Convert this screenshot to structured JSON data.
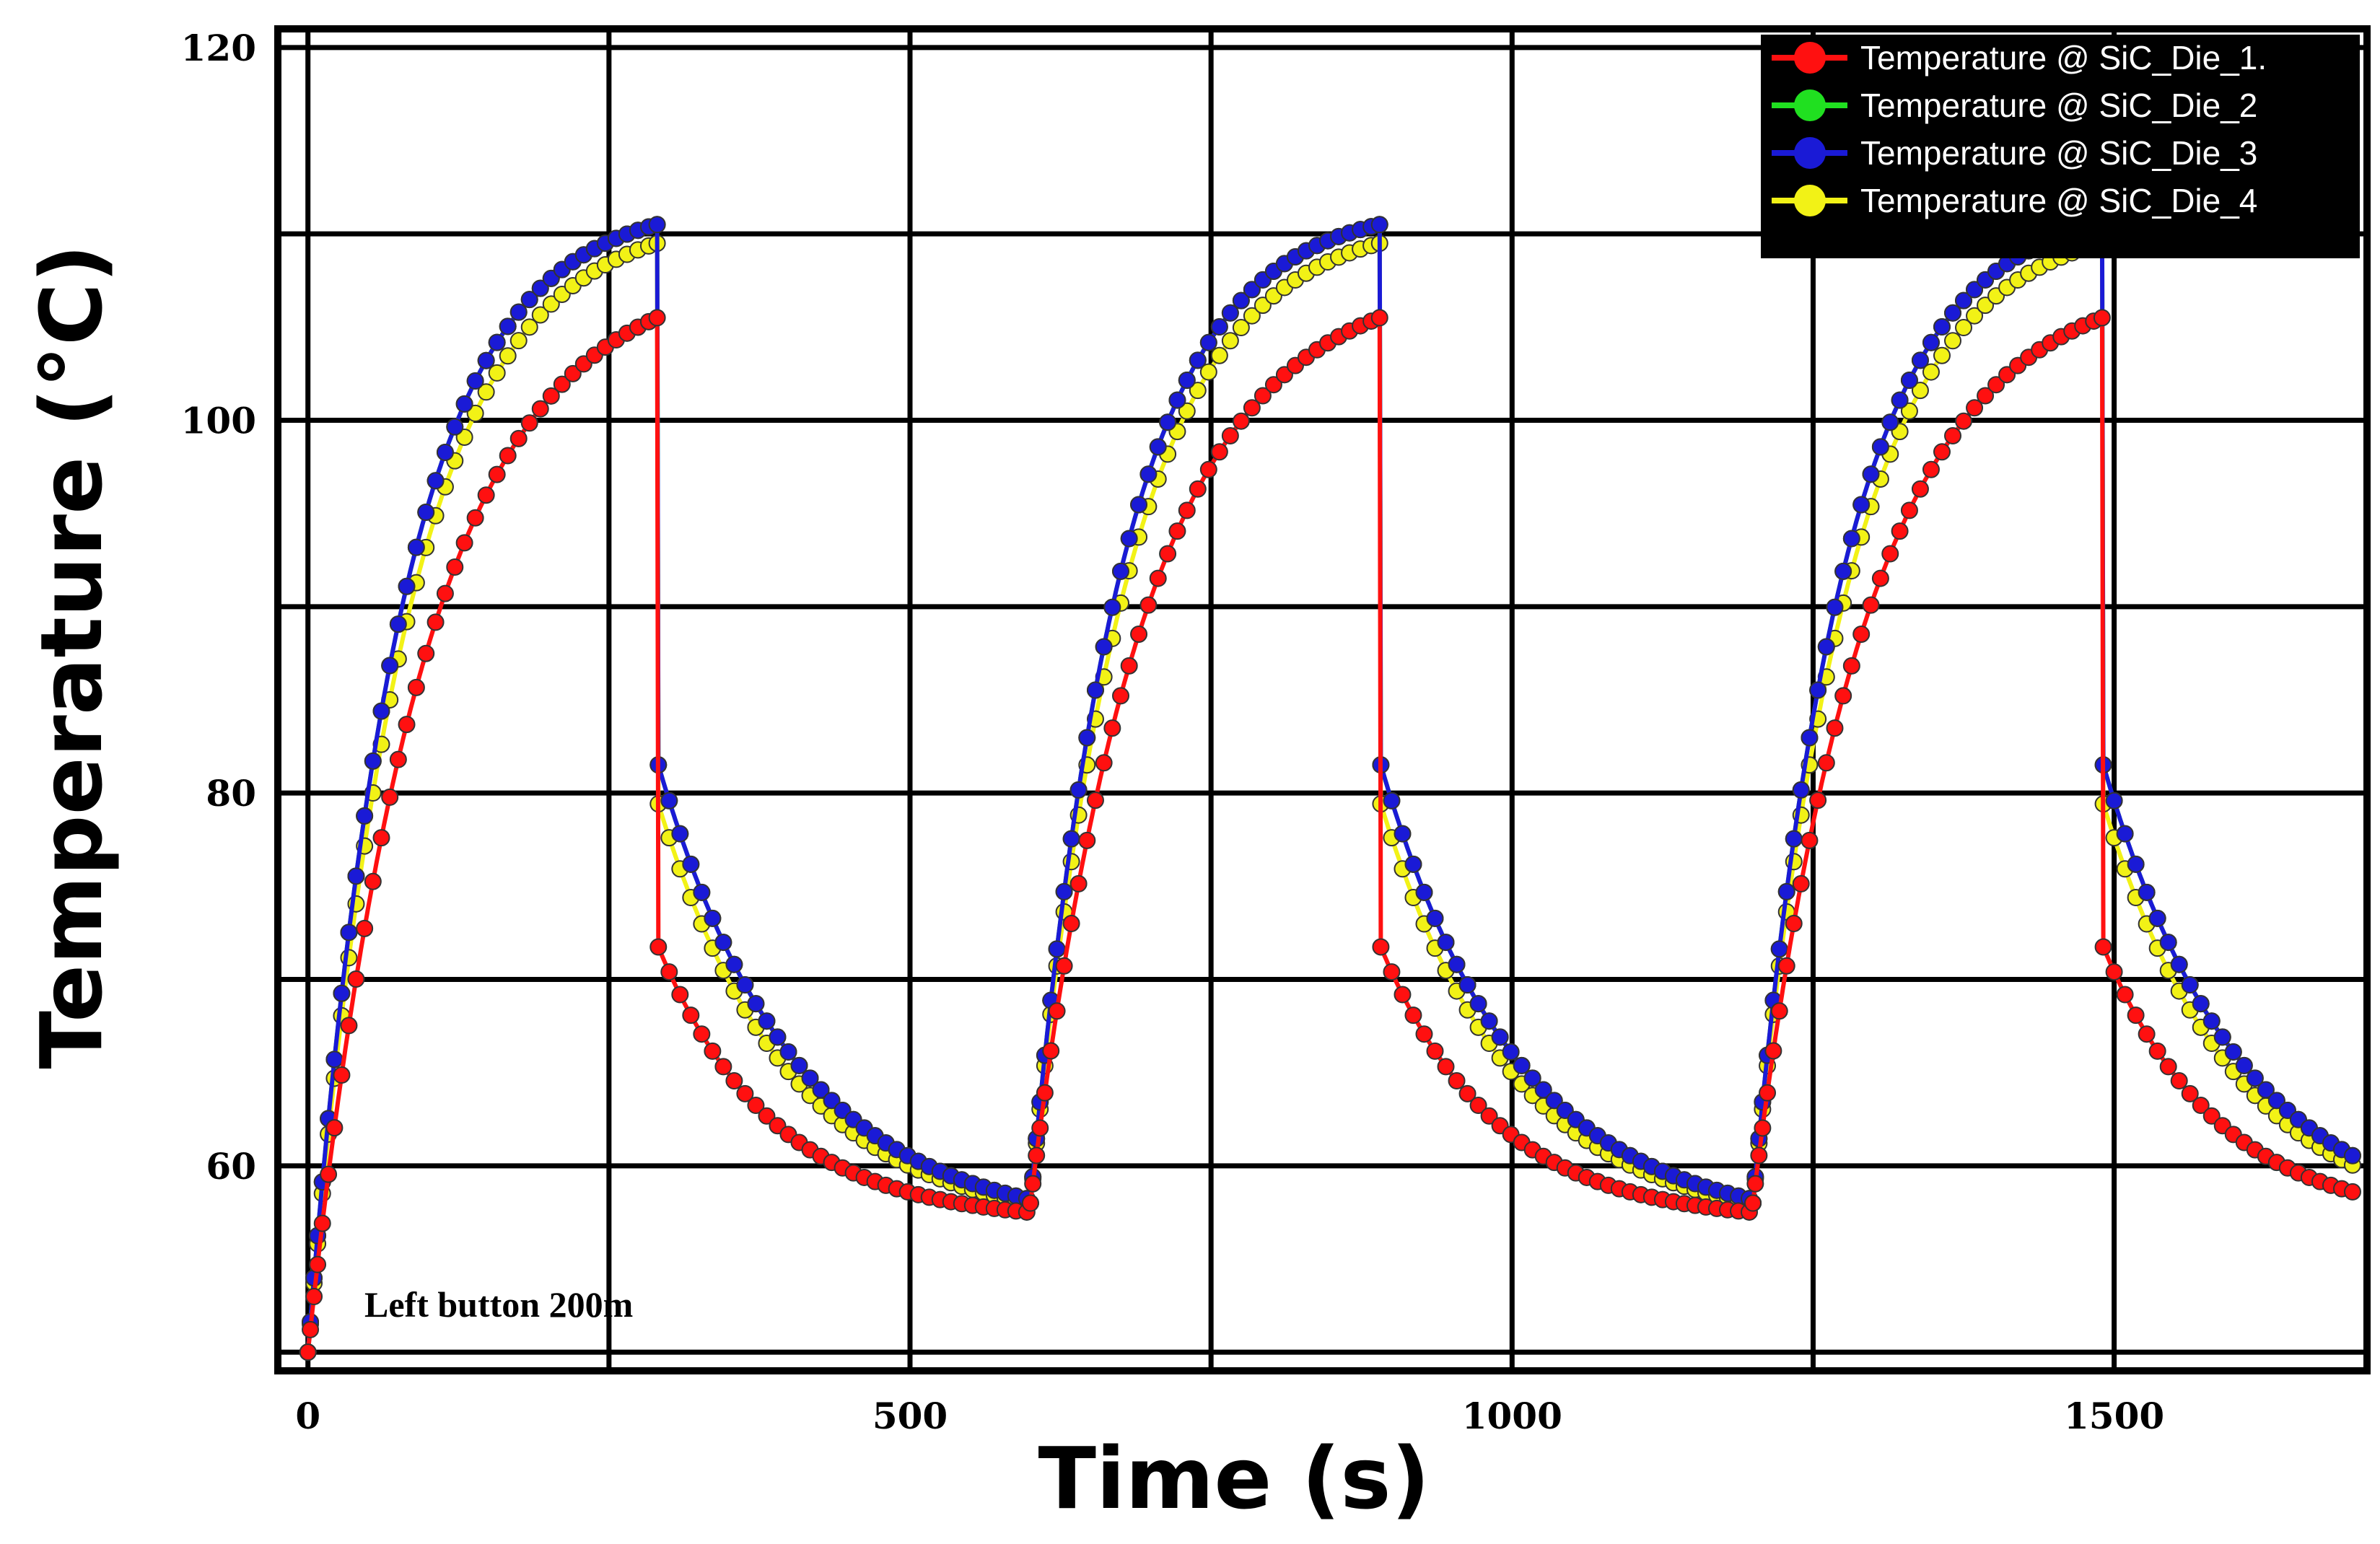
{
  "chart_data": {
    "type": "line",
    "title": "",
    "xlabel": "Time (s)",
    "ylabel": "Temperature (°C)",
    "xlim": [
      -25,
      1710
    ],
    "ylim": [
      49,
      121
    ],
    "x_ticks": [
      0,
      500,
      1000,
      1500
    ],
    "y_ticks": [
      60,
      80,
      100,
      120
    ],
    "x_minor_gridlines": [
      250,
      750,
      1250
    ],
    "y_minor_gridlines": [
      50,
      70,
      90,
      110
    ],
    "grid": true,
    "legend_position": "top-right",
    "annotation": "Left button 200m",
    "cycle": {
      "period_s": 600,
      "heating_s": 290,
      "cycles": 3,
      "end_time_s": 1700,
      "start_temperature": 50,
      "pulse_start_temperatures": [
        50,
        58,
        58
      ]
    },
    "series": [
      {
        "name": "Temperature @ SiC_Die_1.",
        "color": "#ff1010",
        "peak": 105.5,
        "rise_tau_s": 95,
        "drop_fraction": 0.7,
        "cool_tau_s": 95,
        "min": 57.5
      },
      {
        "name": "Temperature @ SiC_Die_2",
        "color": "#20e020",
        "peak": 110.5,
        "rise_tau_s": 75,
        "drop_fraction": 0.55,
        "cool_tau_s": 112,
        "min": 58.2
      },
      {
        "name": "Temperature @ SiC_Die_3",
        "color": "#1a1ad6",
        "peak": 110.5,
        "rise_tau_s": 75,
        "drop_fraction": 0.55,
        "cool_tau_s": 112,
        "min": 58.2
      },
      {
        "name": "Temperature @ SiC_Die_4",
        "color": "#f2f216",
        "peak": 109.5,
        "rise_tau_s": 80,
        "drop_fraction": 0.58,
        "cool_tau_s": 108,
        "min": 58.0
      }
    ]
  }
}
